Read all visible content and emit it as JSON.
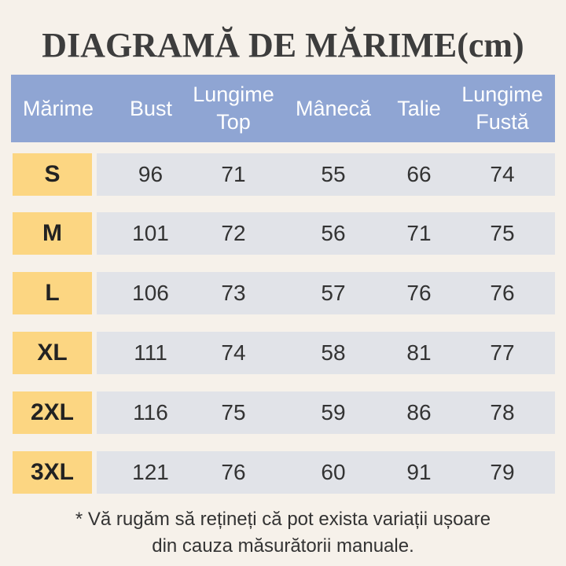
{
  "title": "DIAGRAMĂ DE MĂRIME(cm)",
  "colors": {
    "background": "#f6f1ea",
    "header": "#8fa5d3",
    "size_cell": "#fcd682",
    "value_cell": "#e1e3e8"
  },
  "headers": [
    "Mărime",
    "Bust",
    "Lungime\nTop",
    "Mânecă",
    "Talie",
    "Lungime\nFustă"
  ],
  "rows": [
    {
      "size": "S",
      "values": [
        "96",
        "71",
        "55",
        "66",
        "74"
      ]
    },
    {
      "size": "M",
      "values": [
        "101",
        "72",
        "56",
        "71",
        "75"
      ]
    },
    {
      "size": "L",
      "values": [
        "106",
        "73",
        "57",
        "76",
        "76"
      ]
    },
    {
      "size": "XL",
      "values": [
        "111",
        "74",
        "58",
        "81",
        "77"
      ]
    },
    {
      "size": "2XL",
      "values": [
        "116",
        "75",
        "59",
        "86",
        "78"
      ]
    },
    {
      "size": "3XL",
      "values": [
        "121",
        "76",
        "60",
        "91",
        "79"
      ]
    }
  ],
  "note": "* Vă rugăm să rețineți că pot exista variații ușoare\ndin cauza măsurătorii manuale."
}
